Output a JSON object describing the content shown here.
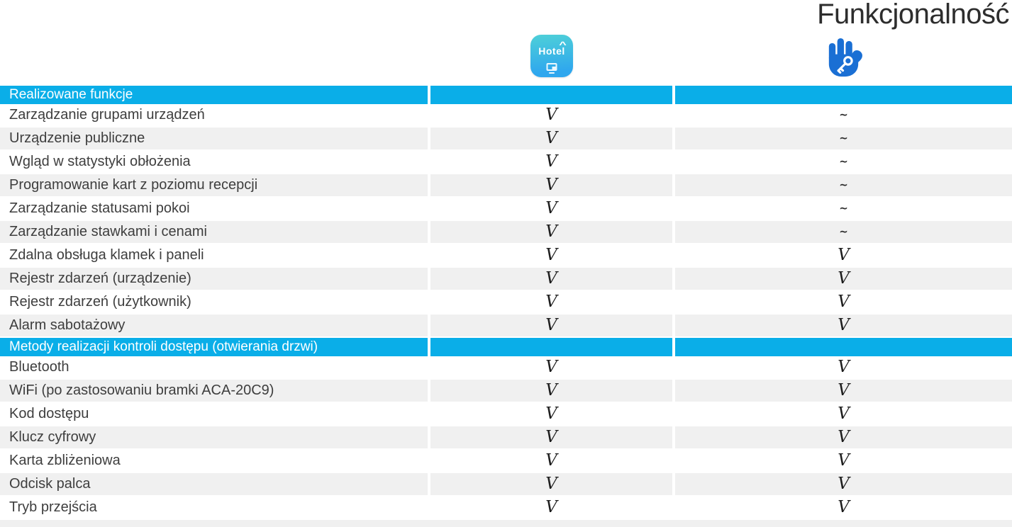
{
  "title": "Funkcjonalność",
  "colors": {
    "accent_header_bar": "#0aaee8",
    "row_alt": "#f0f0f0",
    "hand_icon_blue": "#1a6fd4",
    "hotel_icon_gradient_top": "#4ed0d8",
    "hotel_icon_gradient_bottom": "#2fa7ee",
    "header_text": "#ffffff",
    "label_text": "#3e3e3e"
  },
  "product_columns": [
    {
      "id": "hotel-app",
      "icon": "hotel-app-icon",
      "word": "Hotel"
    },
    {
      "id": "hand-key-app",
      "icon": "hand-key-icon"
    }
  ],
  "hotel_icon": {
    "word": "Hotel",
    "roof": "^"
  },
  "marks": {
    "supported": "V",
    "not_supported": "~"
  },
  "sections": [
    {
      "header": "Realizowane funkcje",
      "rows": [
        {
          "label": "Zarządzanie grupami urządzeń",
          "hotel": "V",
          "hand": "~"
        },
        {
          "label": "Urządzenie publiczne",
          "hotel": "V",
          "hand": "~"
        },
        {
          "label": "Wgląd w statystyki obłożenia",
          "hotel": "V",
          "hand": "~"
        },
        {
          "label": "Programowanie kart z poziomu recepcji",
          "hotel": "V",
          "hand": "~"
        },
        {
          "label": "Zarządzanie statusami pokoi",
          "hotel": "V",
          "hand": "~"
        },
        {
          "label": "Zarządzanie stawkami i cenami",
          "hotel": "V",
          "hand": "~"
        },
        {
          "label": "Zdalna obsługa klamek i paneli",
          "hotel": "V",
          "hand": "V"
        },
        {
          "label": "Rejestr zdarzeń (urządzenie)",
          "hotel": "V",
          "hand": "V"
        },
        {
          "label": "Rejestr zdarzeń (użytkownik)",
          "hotel": "V",
          "hand": "V"
        },
        {
          "label": "Alarm sabotażowy",
          "hotel": "V",
          "hand": "V"
        }
      ]
    },
    {
      "header": "Metody realizacji kontroli dostępu (otwierania drzwi)",
      "rows": [
        {
          "label": "Bluetooth",
          "hotel": "V",
          "hand": "V"
        },
        {
          "label": "WiFi (po zastosowaniu bramki ACA-20C9)",
          "hotel": "V",
          "hand": "V"
        },
        {
          "label": "Kod dostępu",
          "hotel": "V",
          "hand": "V"
        },
        {
          "label": "Klucz cyfrowy",
          "hotel": "V",
          "hand": "V"
        },
        {
          "label": "Karta zbliżeniowa",
          "hotel": "V",
          "hand": "V"
        },
        {
          "label": "Odcisk palca",
          "hotel": "V",
          "hand": "V"
        },
        {
          "label": "Tryb przejścia",
          "hotel": "V",
          "hand": "V"
        }
      ]
    }
  ]
}
